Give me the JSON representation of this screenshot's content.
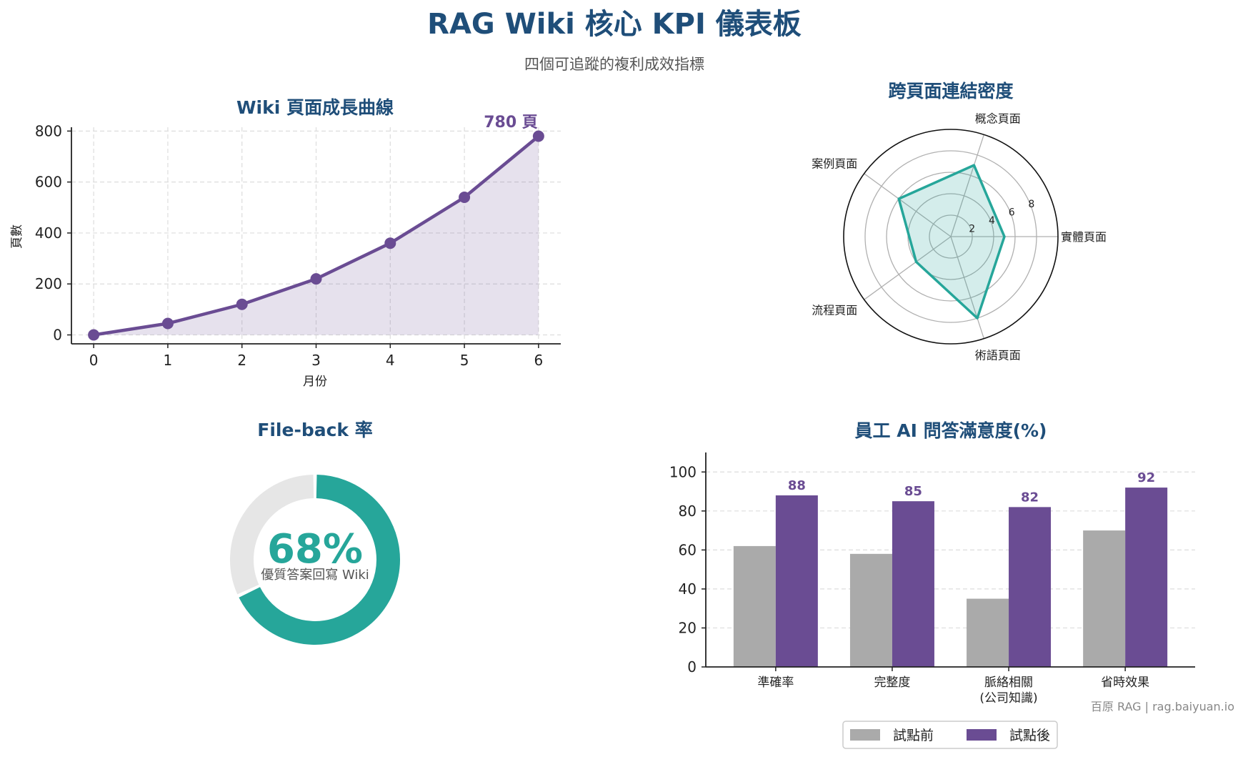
{
  "page": {
    "title": "RAG Wiki 核心 KPI 儀表板",
    "subtitle": "四個可追蹤的複利成效指標",
    "footer": "百原 RAG | rag.baiyuan.io"
  },
  "colors": {
    "title": "#1f4e79",
    "purple": "#6a4c93",
    "teal": "#26a69a",
    "gray": "#aaaaaa",
    "track": "#e6e6e6",
    "grid": "#dddddd"
  },
  "chart_data": [
    {
      "type": "line",
      "title": "Wiki 頁面成長曲線",
      "xlabel": "月份",
      "ylabel": "頁數",
      "x": [
        0,
        1,
        2,
        3,
        4,
        5,
        6
      ],
      "values": [
        0,
        45,
        120,
        220,
        360,
        540,
        780
      ],
      "xlim": [
        -0.3,
        6.3
      ],
      "ylim": [
        -35,
        815
      ],
      "yticks": [
        0,
        200,
        400,
        600,
        800
      ],
      "grid": true,
      "annotation": "780 頁"
    },
    {
      "type": "radar",
      "title": "跨頁面連結密度",
      "categories": [
        "實體頁面",
        "概念頁面",
        "案例頁面",
        "流程頁面",
        "術語頁面"
      ],
      "values": [
        5,
        7,
        6,
        4,
        8
      ],
      "rmax": 10,
      "rticks": [
        2,
        4,
        6,
        8
      ]
    },
    {
      "type": "donut",
      "title": "File-back 率",
      "value": 68,
      "value_label": "68%",
      "caption": "優質答案回寫 Wiki"
    },
    {
      "type": "bar",
      "title": "員工 AI 問答滿意度(%)",
      "categories": [
        "準確率",
        "完整度",
        "脈絡相關\n(公司知識)",
        "省時效果"
      ],
      "series": [
        {
          "name": "試點前",
          "values": [
            62,
            58,
            35,
            70
          ]
        },
        {
          "name": "試點後",
          "values": [
            88,
            85,
            82,
            92
          ]
        }
      ],
      "ylim": [
        0,
        110
      ],
      "yticks": [
        0,
        20,
        40,
        60,
        80,
        100
      ],
      "data_labels": [
        "88",
        "85",
        "82",
        "92"
      ],
      "grid": true,
      "legend": "bottom-center"
    }
  ]
}
